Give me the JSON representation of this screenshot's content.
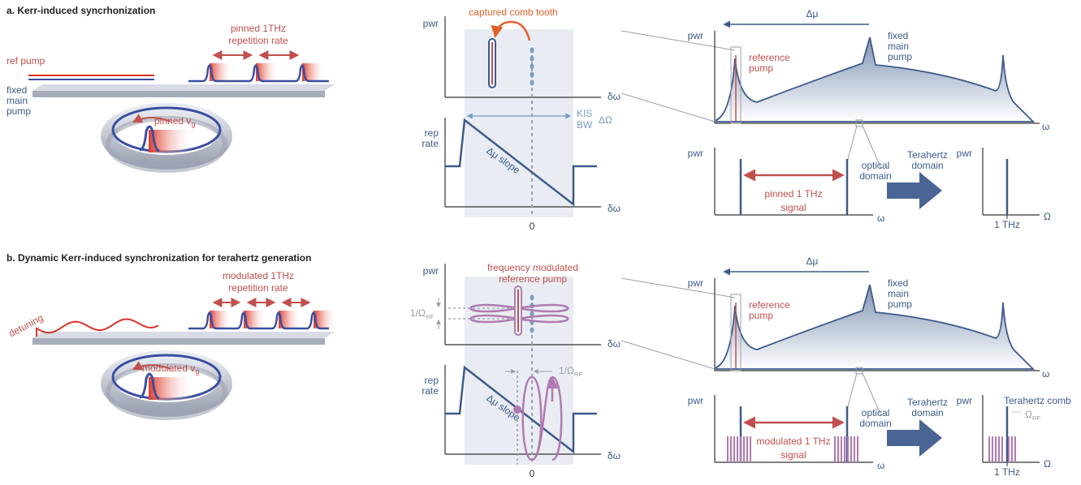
{
  "panels": [
    {
      "title": "a. Kerr-induced syncrhonization",
      "ref_pump": "ref pump",
      "fixed_main_pump": [
        "fixed",
        "main",
        "pump"
      ],
      "rep_rate_label": [
        "pinned 1THz",
        "repetition rate"
      ],
      "vg_label": {
        "text": "pinned v",
        "sub": "g"
      },
      "spectrum": {
        "y_label": "pwr",
        "annotation": [
          "captured comb tooth"
        ],
        "x_label": "δω"
      },
      "rep_plot": {
        "y_label": [
          "rep",
          "rate"
        ],
        "bandwidth": [
          "KIS",
          "BW"
        ],
        "bandwidth_symbol": "ΔΩ",
        "slope": "Δμ slope",
        "x_label": "δω",
        "zero": "0"
      },
      "optical": {
        "y_label": "pwr",
        "delta_mu": "Δμ",
        "main_pump": [
          "fixed",
          "main",
          "pump"
        ],
        "reference_pump": [
          "reference",
          "pump"
        ],
        "x_label": "ω"
      },
      "signal": {
        "y_label": "pwr",
        "label": [
          "pinned 1 THz",
          "signal"
        ],
        "x_label": "ω"
      },
      "conversion": {
        "from": [
          "optical",
          "domain"
        ],
        "to": [
          "Terahertz",
          "domain"
        ]
      },
      "thz": {
        "y_label": "pwr",
        "x_label": "Ω",
        "tick": "1 THz"
      }
    },
    {
      "title": "b. Dynamic Kerr-induced synchronization for terahertz generation",
      "detuning": "detuning",
      "rep_rate_label": [
        "modulated 1THz",
        "repetition rate"
      ],
      "vg_label": {
        "text": "modulated v",
        "sub": "g"
      },
      "spectrum": {
        "y_label": "pwr",
        "annotation": [
          "frequency modulated",
          "reference pump"
        ],
        "period": {
          "text": "1/Ω",
          "sub": "RF"
        },
        "x_label": "δω"
      },
      "rep_plot": {
        "y_label": [
          "rep",
          "rate"
        ],
        "period": {
          "text": "1/Ω",
          "sub": "RF"
        },
        "slope": "Δμ slope",
        "x_label": "δω",
        "zero": "0"
      },
      "optical": {
        "y_label": "pwr",
        "delta_mu": "Δμ",
        "main_pump": [
          "fixed",
          "main",
          "pump"
        ],
        "reference_pump": [
          "reference",
          "pump"
        ],
        "x_label": "ω"
      },
      "signal": {
        "y_label": "pwr",
        "label": [
          "modulated 1 THz",
          "signal"
        ],
        "x_label": "ω"
      },
      "conversion": {
        "from": [
          "optical",
          "domain"
        ],
        "to": [
          "Terahertz",
          "domain"
        ]
      },
      "thz": {
        "y_label": "pwr",
        "title": "Terahertz comb",
        "spacing": {
          "text": "Ω",
          "sub": "RF"
        },
        "x_label": "Ω",
        "tick": "1 THz"
      }
    }
  ]
}
